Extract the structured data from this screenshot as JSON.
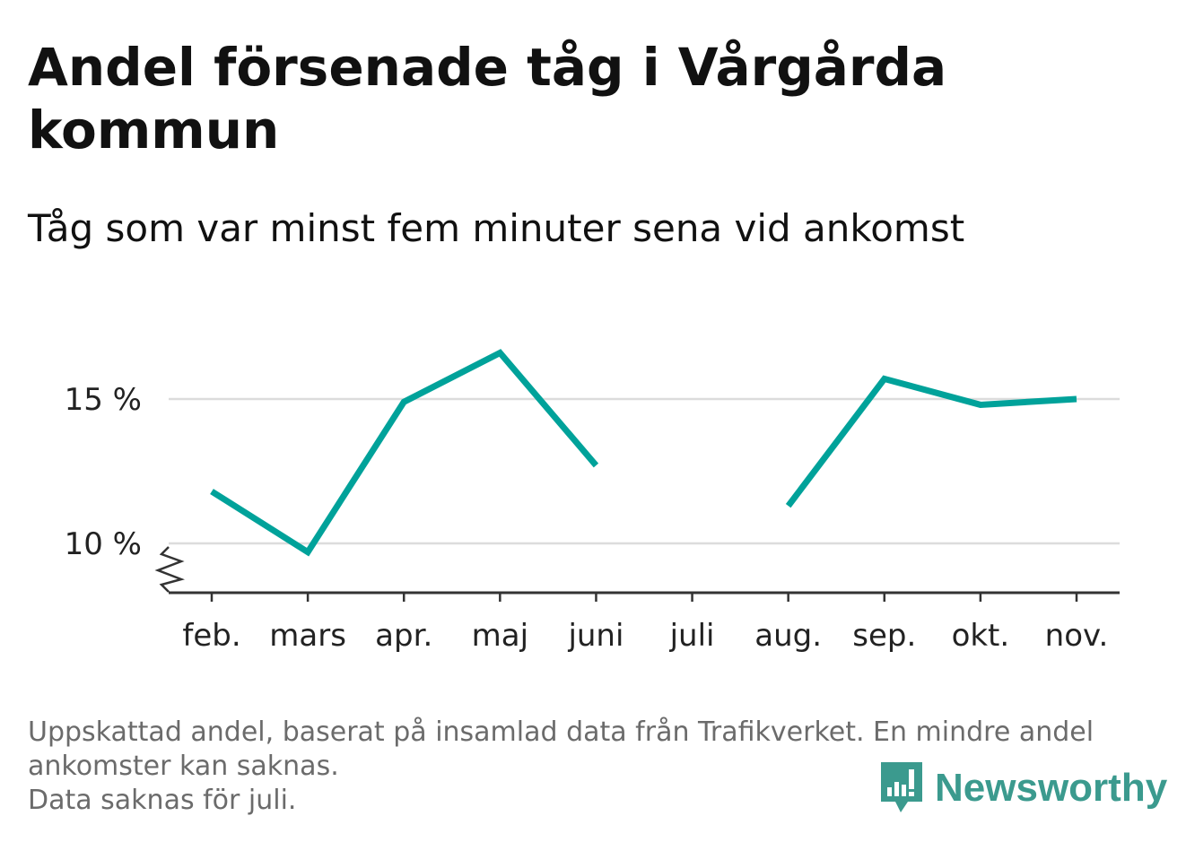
{
  "title": "Andel försenade tåg i Vårgårda kommun",
  "subtitle": "Tåg som var minst fem minuter sena vid ankomst",
  "footnote": {
    "line1": "Uppskattad andel, baserat på insamlad data från Trafikverket. En mindre andel",
    "line2": "ankomster kan saknas.",
    "line3": "Data saknas för juli."
  },
  "logo": {
    "text": "Newsworthy",
    "color": "#3b9a8e",
    "icon": "newsworthy-logo-icon"
  },
  "chart_data": {
    "type": "line",
    "categories": [
      "feb.",
      "mars",
      "apr.",
      "maj",
      "juni",
      "juli",
      "aug.",
      "sep.",
      "okt.",
      "nov."
    ],
    "series": [
      {
        "values": [
          11.8,
          9.7,
          14.9,
          16.6,
          12.7,
          null,
          11.3,
          15.7,
          14.8,
          15.0
        ]
      }
    ],
    "yticks": [
      10,
      15
    ],
    "ytick_labels": [
      "10 %",
      "15 %"
    ],
    "ylim": [
      8.3,
      17.5
    ],
    "axis_break": true,
    "grid": true,
    "line_color": "#00a29a",
    "gridline_color": "#dcdcdc"
  }
}
